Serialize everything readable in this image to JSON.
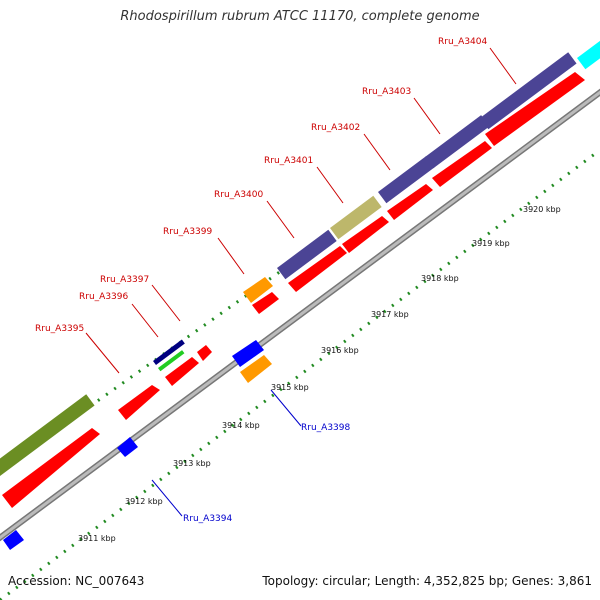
{
  "title": "Rhodospirillum rubrum ATCC 11170, complete genome",
  "footer": {
    "accession": "Accession: NC_007643",
    "summary": "Topology: circular; Length: 4,352,825 bp; Genes: 3,861"
  },
  "colors": {
    "forward_gene": "#ff0000",
    "reverse_gene": "#0000ff",
    "orange_gene": "#ff9900",
    "purple_block": "#4b4495",
    "olive_block": "#6b8e23",
    "tan_block": "#bdb76b",
    "cyan_block": "#00ffff",
    "navy_block": "#000080",
    "green_block": "#22cc22",
    "tick_green": "#228b22",
    "backbone": "#999999",
    "top_label": "#cc0000",
    "bottom_label": "#0000cc"
  },
  "kbp_labels": [
    "3911 kbp",
    "3912 kbp",
    "3913 kbp",
    "3914 kbp",
    "3915 kbp",
    "3916 kbp",
    "3917 kbp",
    "3918 kbp",
    "3919 kbp",
    "3920 kbp"
  ],
  "top_gene_labels": [
    "Rru_A3395",
    "Rru_A3396",
    "Rru_A3397",
    "Rru_A3399",
    "Rru_A3400",
    "Rru_A3401",
    "Rru_A3402",
    "Rru_A3403",
    "Rru_A3404"
  ],
  "bottom_gene_labels": [
    "Rru_A3394",
    "Rru_A3398"
  ]
}
